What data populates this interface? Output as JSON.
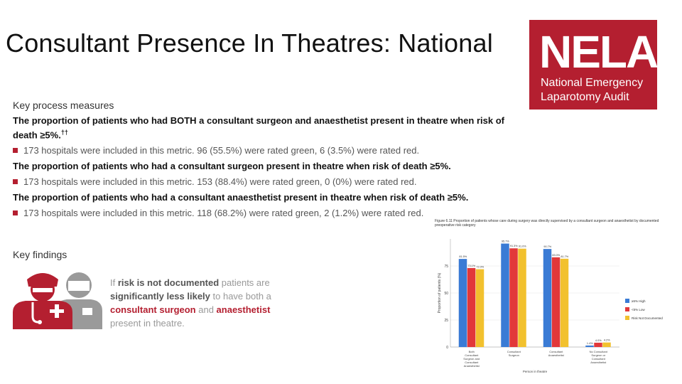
{
  "title": "Consultant Presence In Theatres: National",
  "logo": {
    "text": "NELA",
    "line1": "National Emergency",
    "line2": "Laparotomy Audit"
  },
  "measures": {
    "heading": "Key process measures",
    "items": [
      {
        "bold": "The proportion of patients who had BOTH a consultant surgeon and anaesthetist present in theatre when risk of death ≥5%.",
        "sup": "††",
        "bullet": "173 hospitals were included in this metric. 96 (55.5%) were rated green, 6 (3.5%) were rated red."
      },
      {
        "bold": "The proportion of patients who had a consultant surgeon present in theatre when risk of death ≥5%.",
        "sup": "",
        "bullet": "173 hospitals were included in this metric. 153 (88.4%) were rated green, 0 (0%) were rated red."
      },
      {
        "bold": "The proportion of patients who had a consultant anaesthetist present in theatre when risk of death ≥5%.",
        "sup": "",
        "bullet": "173 hospitals were included in this metric. 118 (68.2%) were rated green, 2 (1.2%) were rated red."
      }
    ]
  },
  "findings": {
    "heading": "Key findings",
    "t1": "If ",
    "t2": "risk is not documented",
    "t3": " patients are ",
    "t4": "significantly less likely",
    "t5": " to have both a ",
    "t6": "consultant surgeon",
    "t7": " and ",
    "t8": "anaesthetist",
    "t9": " present in theatre."
  },
  "colors": {
    "brand": "#b41f30",
    "blue": "#3a7bd5",
    "red": "#e2383a",
    "yellow": "#f2c12e"
  },
  "chart_data": {
    "type": "bar",
    "caption": "Figure 6.11 Proportion of patients whose care during surgery was directly supervised by a consultant surgeon and anaesthetist by documented preoperative risk category",
    "categories": [
      "Both Consultant Surgeon and Consultant Anaesthetist",
      "Consultant Surgeon",
      "Consultant Anaesthetist",
      "No Consultant Surgeon or Consultant Anaesthetist"
    ],
    "series": [
      {
        "name": "≥5% High",
        "values": [
          81.5,
          95.7,
          90.7,
          1.4
        ]
      },
      {
        "name": "<5% Low",
        "values": [
          73.1,
          91.3,
          83.0,
          4.0
        ]
      },
      {
        "name": "Risk Not Documented",
        "values": [
          72.0,
          91.0,
          81.7,
          4.2
        ]
      }
    ],
    "ylabel": "Proportion of patients (%)",
    "xlabel": "Person in theatre",
    "yticks": [
      0,
      25,
      50,
      75
    ],
    "ylim": [
      0,
      100
    ],
    "legend": "right"
  }
}
